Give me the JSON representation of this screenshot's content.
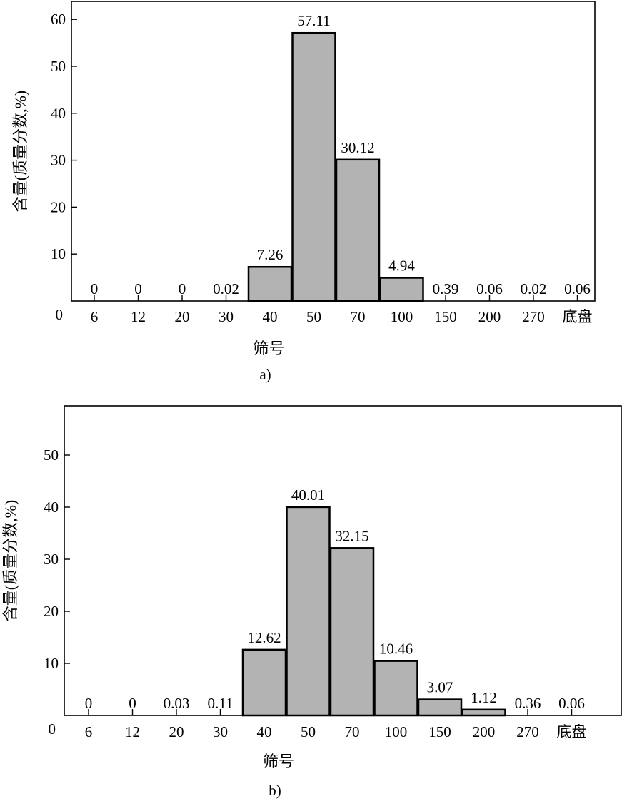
{
  "chart_data": [
    {
      "type": "bar",
      "panel_label": "a)",
      "xlabel": "筛号",
      "ylabel": "含量(质量分数,%)",
      "categories": [
        "6",
        "12",
        "20",
        "30",
        "40",
        "50",
        "70",
        "100",
        "150",
        "200",
        "270",
        "底盘"
      ],
      "values": [
        0,
        0,
        0,
        0.02,
        7.26,
        57.11,
        30.12,
        4.94,
        0.39,
        0.06,
        0.02,
        0.06
      ],
      "value_labels": [
        "0",
        "0",
        "0",
        "0.02",
        "7.26",
        "57.11",
        "30.12",
        "4.94",
        "0.39",
        "0.06",
        "0.02",
        "0.06"
      ],
      "yticks": [
        "0",
        "10",
        "20",
        "30",
        "40",
        "50",
        "60"
      ],
      "ylim": [
        0,
        64
      ],
      "grid": false,
      "legend": "none"
    },
    {
      "type": "bar",
      "panel_label": "b)",
      "xlabel": "筛号",
      "ylabel": "含量(质量分数,%)",
      "categories": [
        "6",
        "12",
        "20",
        "30",
        "40",
        "50",
        "70",
        "100",
        "150",
        "200",
        "270",
        "底盘"
      ],
      "values": [
        0,
        0,
        0.03,
        0.11,
        12.62,
        40.01,
        32.15,
        10.46,
        3.07,
        1.12,
        0.36,
        0.06
      ],
      "value_labels": [
        "0",
        "0",
        "0.03",
        "0.11",
        "12.62",
        "40.01",
        "32.15",
        "10.46",
        "3.07",
        "1.12",
        "0.36",
        "0.06"
      ],
      "yticks": [
        "0",
        "10",
        "20",
        "30",
        "40",
        "50"
      ],
      "ylim": [
        0,
        58
      ],
      "grid": false,
      "legend": "none"
    }
  ],
  "colors": {
    "bar_fill": "#b3b3b3",
    "bar_stroke": "#000000"
  }
}
